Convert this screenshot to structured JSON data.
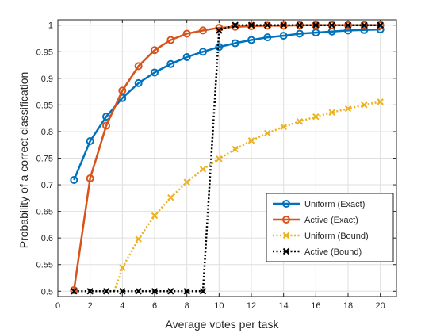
{
  "chart_data": {
    "type": "line",
    "title": "",
    "xlabel": "Average votes per task",
    "ylabel": "Probability of a correct classification",
    "xlim": [
      0,
      21
    ],
    "ylim": [
      0.49,
      1.01
    ],
    "xticks": [
      0,
      2,
      4,
      6,
      8,
      10,
      12,
      14,
      16,
      18,
      20
    ],
    "yticks": [
      0.5,
      0.55,
      0.6,
      0.65,
      0.7,
      0.75,
      0.8,
      0.85,
      0.9,
      0.95,
      1
    ],
    "ytick_labels": [
      "0.5",
      "0.55",
      "0.6",
      "0.65",
      "0.7",
      "0.75",
      "0.8",
      "0.85",
      "0.9",
      "0.95",
      "1"
    ],
    "grid": true,
    "legend_position": "lower-right",
    "series": [
      {
        "name": "Uniform (Exact)",
        "color": "#0072BD",
        "line_style": "solid",
        "marker": "circle",
        "x": [
          1,
          2,
          3,
          4,
          5,
          6,
          7,
          8,
          9,
          10,
          11,
          12,
          13,
          14,
          15,
          16,
          17,
          18,
          19,
          20
        ],
        "y": [
          0.709,
          0.782,
          0.828,
          0.863,
          0.891,
          0.911,
          0.927,
          0.94,
          0.95,
          0.959,
          0.966,
          0.972,
          0.977,
          0.98,
          0.984,
          0.986,
          0.988,
          0.99,
          0.991,
          0.992
        ]
      },
      {
        "name": "Active (Exact)",
        "color": "#D95319",
        "line_style": "solid",
        "marker": "circle",
        "x": [
          1,
          2,
          3,
          4,
          5,
          6,
          7,
          8,
          9,
          10,
          11,
          12,
          13,
          14,
          15,
          16,
          17,
          18,
          19,
          20
        ],
        "y": [
          0.502,
          0.712,
          0.811,
          0.877,
          0.923,
          0.953,
          0.972,
          0.984,
          0.99,
          0.995,
          0.997,
          0.998,
          0.999,
          0.999,
          1.0,
          1.0,
          1.0,
          1.0,
          1.0,
          1.0
        ]
      },
      {
        "name": "Uniform (Bound)",
        "color": "#EDB120",
        "line_style": "dotted",
        "marker": "x",
        "x": [
          3.5,
          4,
          5,
          6,
          7,
          8,
          9,
          10,
          11,
          12,
          13,
          14,
          15,
          16,
          17,
          18,
          19,
          20
        ],
        "y": [
          0.5,
          0.544,
          0.598,
          0.642,
          0.676,
          0.705,
          0.729,
          0.749,
          0.767,
          0.783,
          0.797,
          0.809,
          0.819,
          0.828,
          0.836,
          0.843,
          0.85,
          0.856
        ]
      },
      {
        "name": "Active (Bound)",
        "color": "#000000",
        "line_style": "dotted",
        "marker": "x",
        "x": [
          1,
          2,
          3,
          4,
          5,
          6,
          7,
          8,
          9,
          10,
          11,
          12,
          13,
          14,
          15,
          16,
          17,
          18,
          19,
          20
        ],
        "y": [
          0.5,
          0.5,
          0.5,
          0.5,
          0.5,
          0.5,
          0.5,
          0.5,
          0.5,
          0.99,
          1.0,
          1.0,
          1.0,
          1.0,
          1.0,
          1.0,
          1.0,
          1.0,
          1.0,
          1.0
        ]
      }
    ]
  }
}
